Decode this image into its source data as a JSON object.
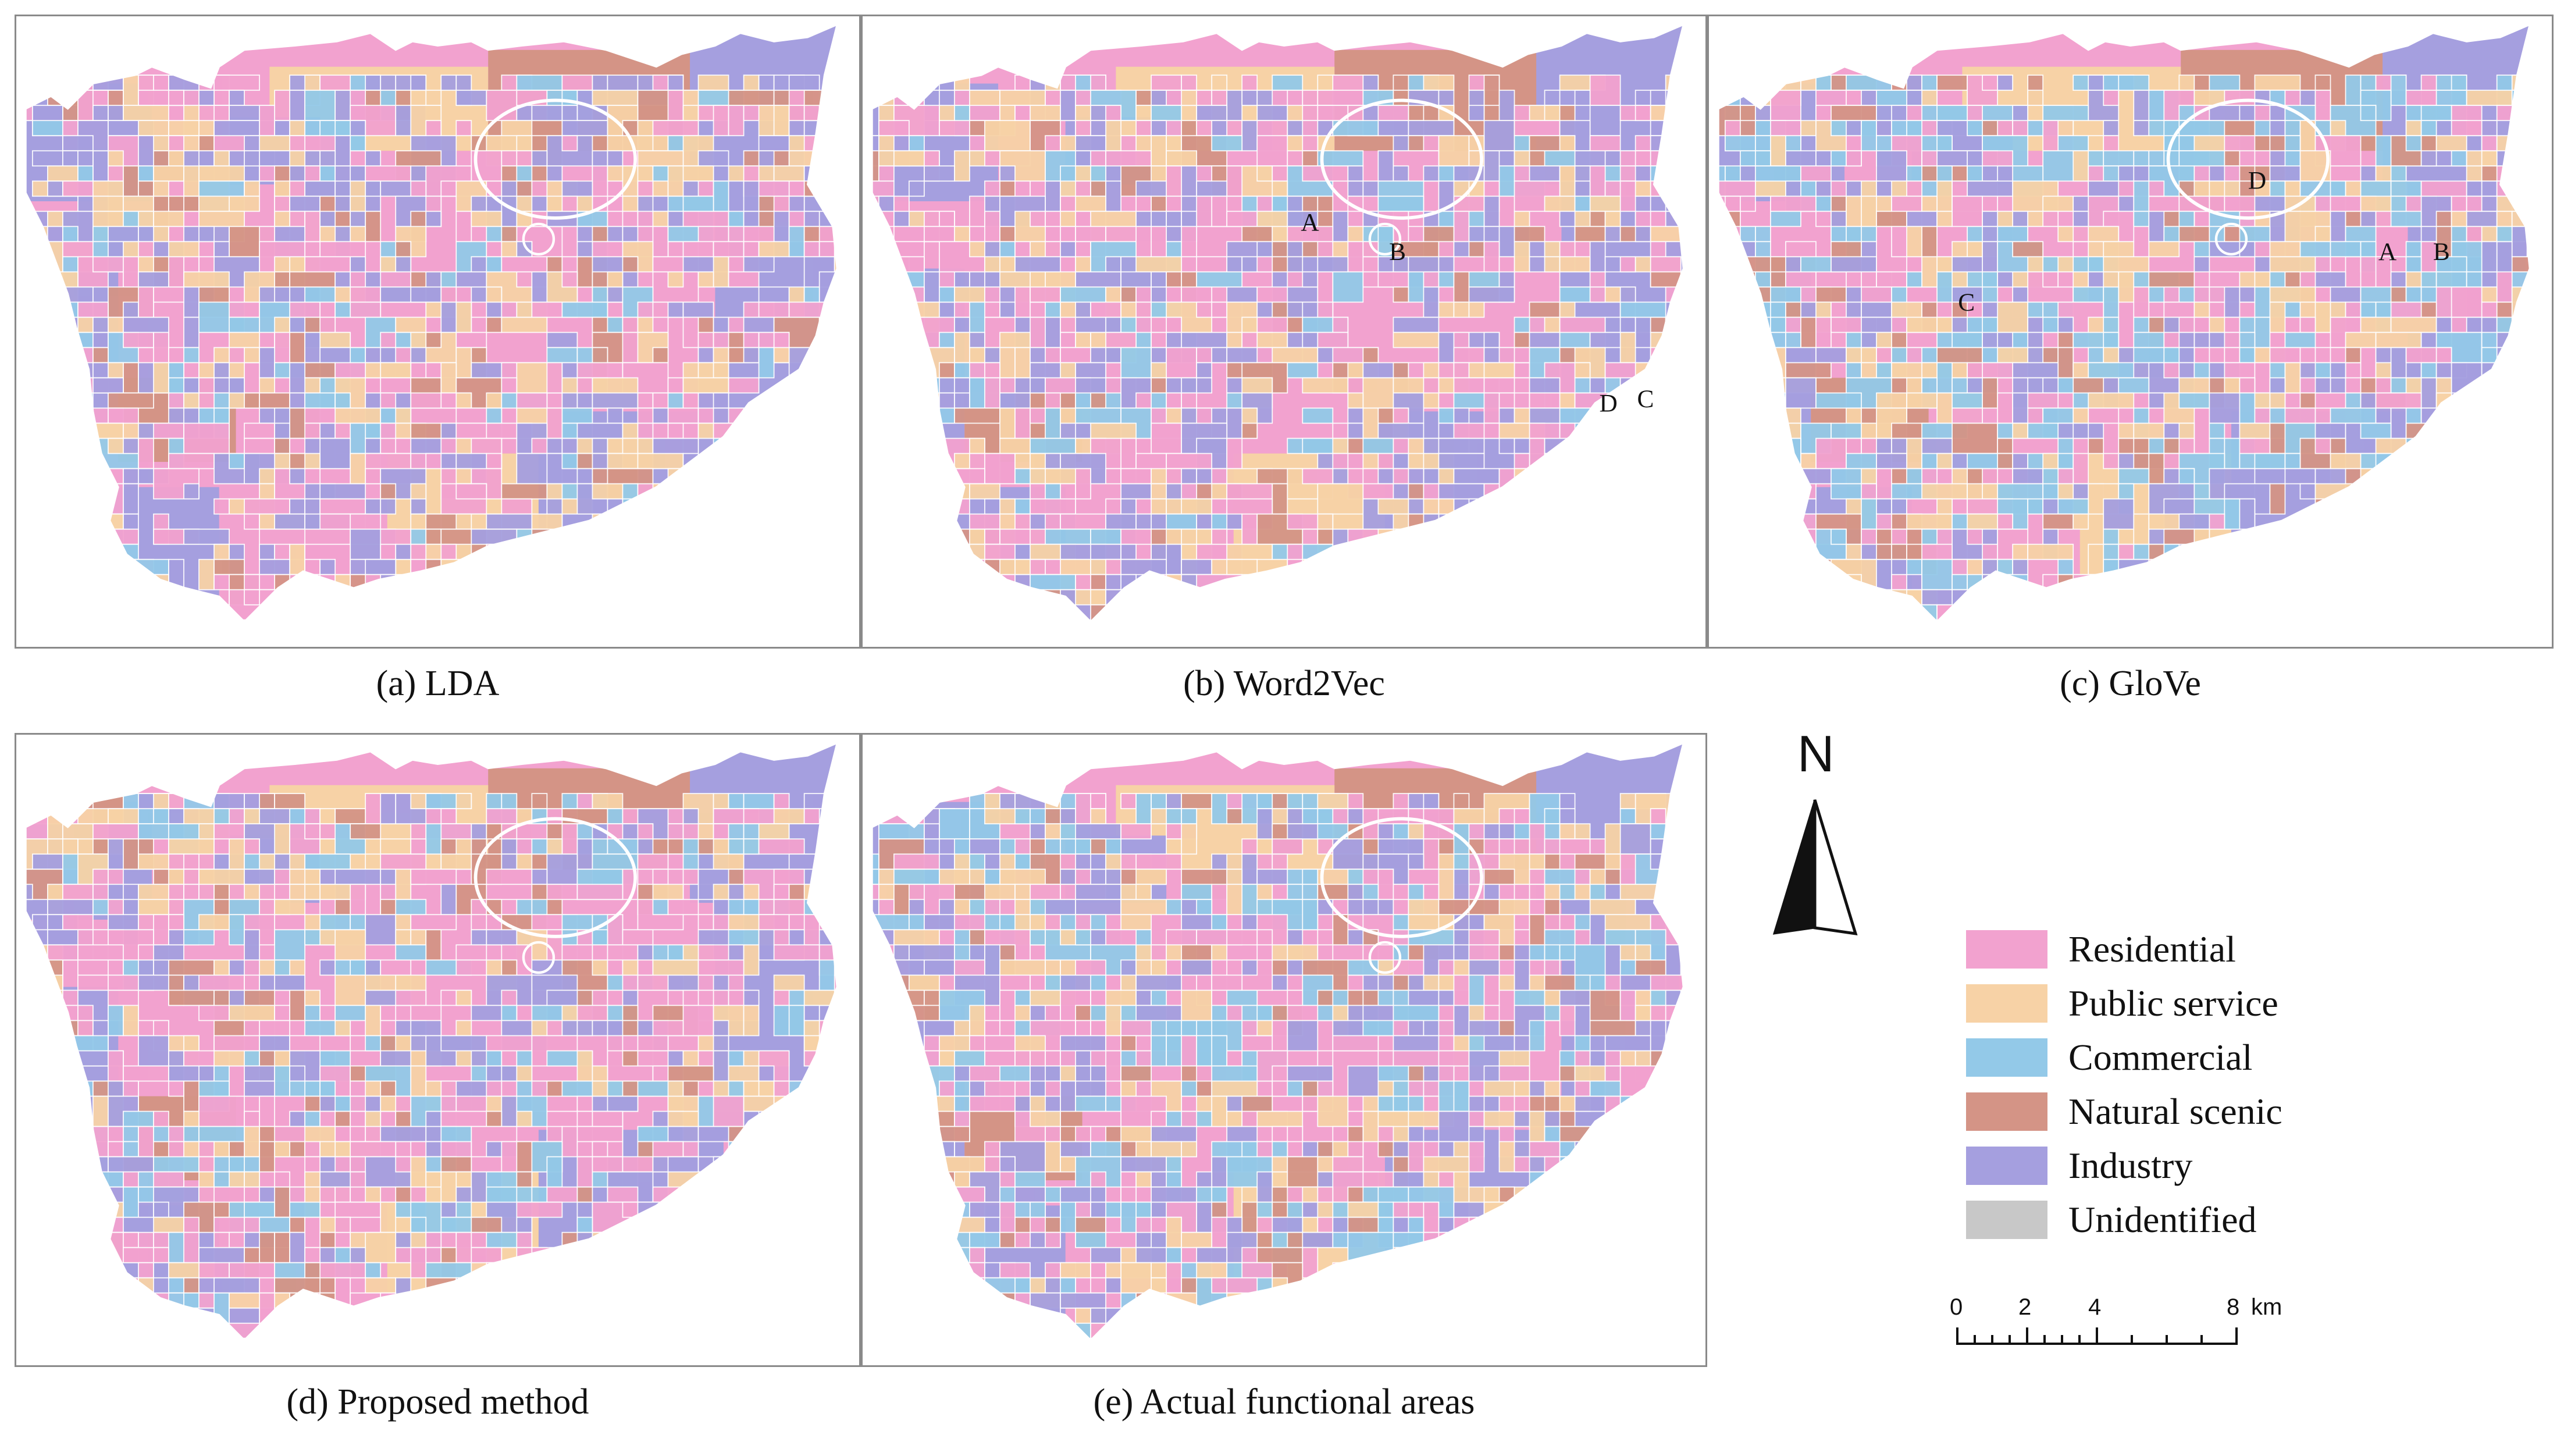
{
  "panels": [
    {
      "id": "a",
      "caption": "(a) LDA",
      "markers": []
    },
    {
      "id": "b",
      "caption": "(b) Word2Vec",
      "markers": [
        "A",
        "B",
        "D",
        "C"
      ]
    },
    {
      "id": "c",
      "caption": "(c) GloVe",
      "markers": [
        "D",
        "A",
        "B",
        "C"
      ]
    },
    {
      "id": "d",
      "caption": "(d) Proposed method",
      "markers": []
    },
    {
      "id": "e",
      "caption": "(e) Actual functional areas",
      "markers": []
    }
  ],
  "north_arrow": {
    "label": "N"
  },
  "legend": {
    "items": [
      {
        "label": "Residential",
        "color": "#f2a2cf"
      },
      {
        "label": "Public service",
        "color": "#f7d2a6"
      },
      {
        "label": "Commercial",
        "color": "#93c9e8"
      },
      {
        "label": "Natural scenic",
        "color": "#d49486"
      },
      {
        "label": "Industry",
        "color": "#a59fdf"
      },
      {
        "label": "Unidentified",
        "color": "#c8c8c8"
      }
    ]
  },
  "scale_bar": {
    "ticks": [
      "0",
      "2",
      "4",
      "8"
    ],
    "unit": "km"
  }
}
